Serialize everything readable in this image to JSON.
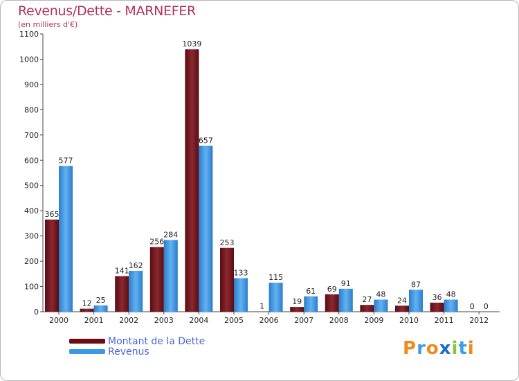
{
  "chart_data": {
    "type": "bar",
    "title": "Revenus/Dette - MARNEFER",
    "subtitle": "(en milliers d'€)",
    "xlabel": "",
    "ylabel": "",
    "ylim": [
      0,
      1100
    ],
    "yticks": [
      0,
      100,
      200,
      300,
      400,
      500,
      600,
      700,
      800,
      900,
      1000,
      1100
    ],
    "grid": false,
    "categories": [
      "2000",
      "2001",
      "2002",
      "2003",
      "2004",
      "2005",
      "2006",
      "2007",
      "2008",
      "2009",
      "2010",
      "2011",
      "2012"
    ],
    "series": [
      {
        "name": "Montant de la Dette",
        "color": "#7a1a20",
        "values": [
          365,
          12,
          141,
          256,
          1039,
          253,
          1,
          19,
          69,
          27,
          24,
          36,
          0
        ]
      },
      {
        "name": "Revenus",
        "color": "#2f8ee0",
        "values": [
          577,
          25,
          162,
          284,
          657,
          133,
          115,
          61,
          91,
          48,
          87,
          48,
          0
        ]
      }
    ]
  },
  "legend": {
    "debt_label": "Montant de la Dette",
    "revenue_label": "Revenus"
  },
  "logo": {
    "letters": [
      "P",
      "r",
      "o",
      "x",
      "i",
      "t",
      "i"
    ],
    "colors": [
      "#f08a1c",
      "#3ca0e0",
      "#f08a1c",
      "#1a70c0",
      "#8cc43c",
      "#3ca0e0",
      "#f08a1c"
    ]
  }
}
